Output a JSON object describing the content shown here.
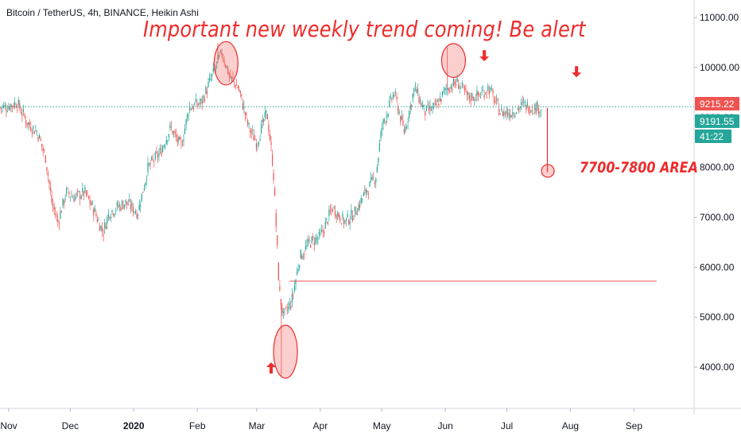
{
  "symbol_title": "Bitcoin / TetherUS, 4h, BINANCE, Heikin Ashi",
  "annotations": {
    "headline": "Important new weekly trend coming! Be alert",
    "target_label": "7700-7800 AREA"
  },
  "price_badges": [
    {
      "value": "9215.22",
      "color": "#ef5350"
    },
    {
      "value": "9191.55",
      "color": "#26a69a"
    },
    {
      "value": "41:22",
      "color": "#26a69a"
    }
  ],
  "colors": {
    "up": "#26a69a",
    "down": "#ef5350",
    "annotation": "#ef2b2b",
    "dotted_line": "#26a69a"
  },
  "chart_data": {
    "type": "candlestick",
    "title": "Bitcoin / TetherUS, 4h, BINANCE, Heikin Ashi",
    "x_tick_labels": [
      "Nov",
      "Dec",
      "2020",
      "Feb",
      "Mar",
      "Apr",
      "May",
      "Jun",
      "Jul",
      "Aug",
      "Sep"
    ],
    "x_tick_dates": [
      "2019-11-01",
      "2019-12-01",
      "2020-01-01",
      "2020-02-01",
      "2020-03-01",
      "2020-04-01",
      "2020-05-01",
      "2020-06-01",
      "2020-07-01",
      "2020-08-01",
      "2020-09-01"
    ],
    "y_tick_labels": [
      "4000.00",
      "5000.00",
      "6000.00",
      "7000.00",
      "8000.00",
      "9000.00",
      "10000.00",
      "11000.00"
    ],
    "ylim": [
      3000,
      11300
    ],
    "xlim": [
      "2019-11-01",
      "2020-09-16"
    ],
    "grid": false,
    "series": [
      {
        "points": [
          [
            "2019-10-30",
            9200
          ],
          [
            "2019-11-05",
            9300
          ],
          [
            "2019-11-10",
            8900
          ],
          [
            "2019-11-15",
            8700
          ],
          [
            "2019-11-19",
            8200
          ],
          [
            "2019-11-22",
            7300
          ],
          [
            "2019-11-25",
            6900
          ],
          [
            "2019-11-29",
            7500
          ],
          [
            "2019-12-03",
            7400
          ],
          [
            "2019-12-08",
            7500
          ],
          [
            "2019-12-12",
            7200
          ],
          [
            "2019-12-17",
            6700
          ],
          [
            "2019-12-20",
            7100
          ],
          [
            "2019-12-28",
            7300
          ],
          [
            "2020-01-03",
            7100
          ],
          [
            "2020-01-08",
            8000
          ],
          [
            "2020-01-14",
            8300
          ],
          [
            "2020-01-19",
            8800
          ],
          [
            "2020-01-24",
            8400
          ],
          [
            "2020-01-28",
            9200
          ],
          [
            "2020-02-03",
            9300
          ],
          [
            "2020-02-08",
            9800
          ],
          [
            "2020-02-13",
            10300
          ],
          [
            "2020-02-17",
            9800
          ],
          [
            "2020-02-21",
            9600
          ],
          [
            "2020-02-26",
            8800
          ],
          [
            "2020-03-01",
            8500
          ],
          [
            "2020-03-06",
            9100
          ],
          [
            "2020-03-09",
            8000
          ],
          [
            "2020-03-12",
            5500
          ],
          [
            "2020-03-14",
            5000
          ],
          [
            "2020-03-18",
            5300
          ],
          [
            "2020-03-22",
            6200
          ],
          [
            "2020-03-27",
            6500
          ],
          [
            "2020-04-01",
            6600
          ],
          [
            "2020-04-07",
            7200
          ],
          [
            "2020-04-13",
            6900
          ],
          [
            "2020-04-18",
            7100
          ],
          [
            "2020-04-23",
            7500
          ],
          [
            "2020-04-28",
            7800
          ],
          [
            "2020-05-01",
            8800
          ],
          [
            "2020-05-07",
            9500
          ],
          [
            "2020-05-12",
            8700
          ],
          [
            "2020-05-17",
            9600
          ],
          [
            "2020-05-22",
            9100
          ],
          [
            "2020-05-27",
            9200
          ],
          [
            "2020-06-02",
            9600
          ],
          [
            "2020-06-07",
            9700
          ],
          [
            "2020-06-12",
            9400
          ],
          [
            "2020-06-18",
            9450
          ],
          [
            "2020-06-22",
            9600
          ],
          [
            "2020-06-28",
            9100
          ],
          [
            "2020-07-03",
            9100
          ],
          [
            "2020-07-09",
            9250
          ],
          [
            "2020-07-14",
            9200
          ],
          [
            "2020-07-18",
            9191.55
          ]
        ],
        "highlight_highs": [
          [
            "2020-02-11",
            10500
          ],
          [
            "2020-06-02",
            10400
          ]
        ],
        "highlight_low": [
          "2020-03-13",
          3800
        ]
      }
    ],
    "horizontal_lines": [
      {
        "value": 9215.22,
        "style": "dotted",
        "color": "#26a69a"
      },
      {
        "value": 5720,
        "from": "2020-03-17",
        "to": "2020-09-12",
        "style": "solid",
        "color": "#ef5350"
      }
    ],
    "projection": {
      "from_date": "2020-07-20",
      "from_value": 9191.55,
      "to_value": 7900
    },
    "markers": [
      {
        "kind": "ellipse",
        "date": "2020-02-15",
        "low": 9650,
        "high": 10520
      },
      {
        "kind": "ellipse",
        "date": "2020-06-05",
        "low": 9800,
        "high": 10480
      },
      {
        "kind": "ellipse",
        "date": "2020-03-15",
        "low": 3780,
        "high": 4840
      },
      {
        "kind": "circle",
        "date": "2020-07-21",
        "value": 7930
      },
      {
        "kind": "arrow-down",
        "date": "2020-06-20",
        "value": 10220
      },
      {
        "kind": "arrow-down",
        "date": "2020-08-04",
        "value": 9900
      },
      {
        "kind": "arrow-up",
        "date": "2020-03-08",
        "value": 4000
      }
    ]
  }
}
